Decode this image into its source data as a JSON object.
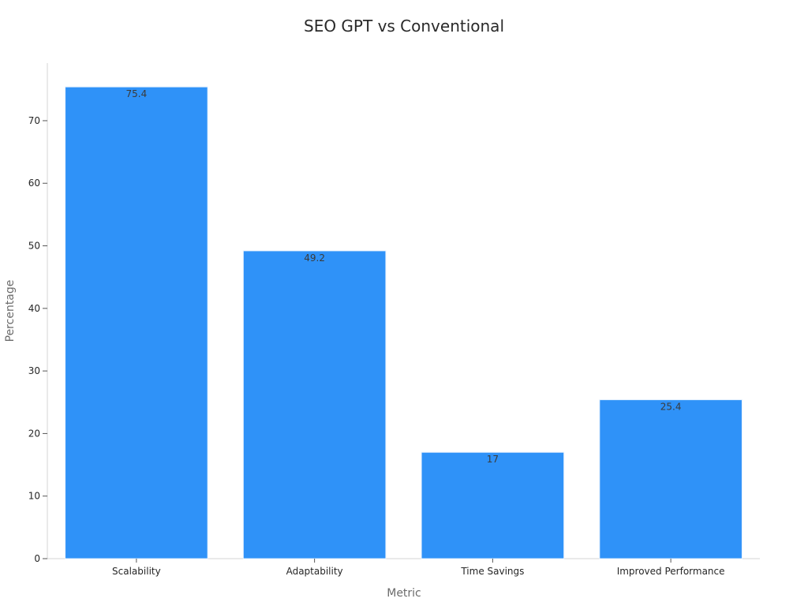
{
  "chart_data": {
    "type": "bar",
    "title": "SEO GPT vs Conventional",
    "xlabel": "Metric",
    "ylabel": "Percentage",
    "categories": [
      "Scalability",
      "Adaptability",
      "Time Savings",
      "Improved Performance"
    ],
    "values": [
      75.4,
      49.2,
      17,
      25.4
    ],
    "data_labels": [
      "75.4",
      "49.2",
      "17",
      "25.4"
    ],
    "yticks": [
      0,
      10,
      20,
      30,
      40,
      50,
      60,
      70
    ],
    "ylim": [
      0,
      79.2
    ],
    "bar_color": "#2f92f8",
    "grid": false,
    "legend": "none"
  }
}
